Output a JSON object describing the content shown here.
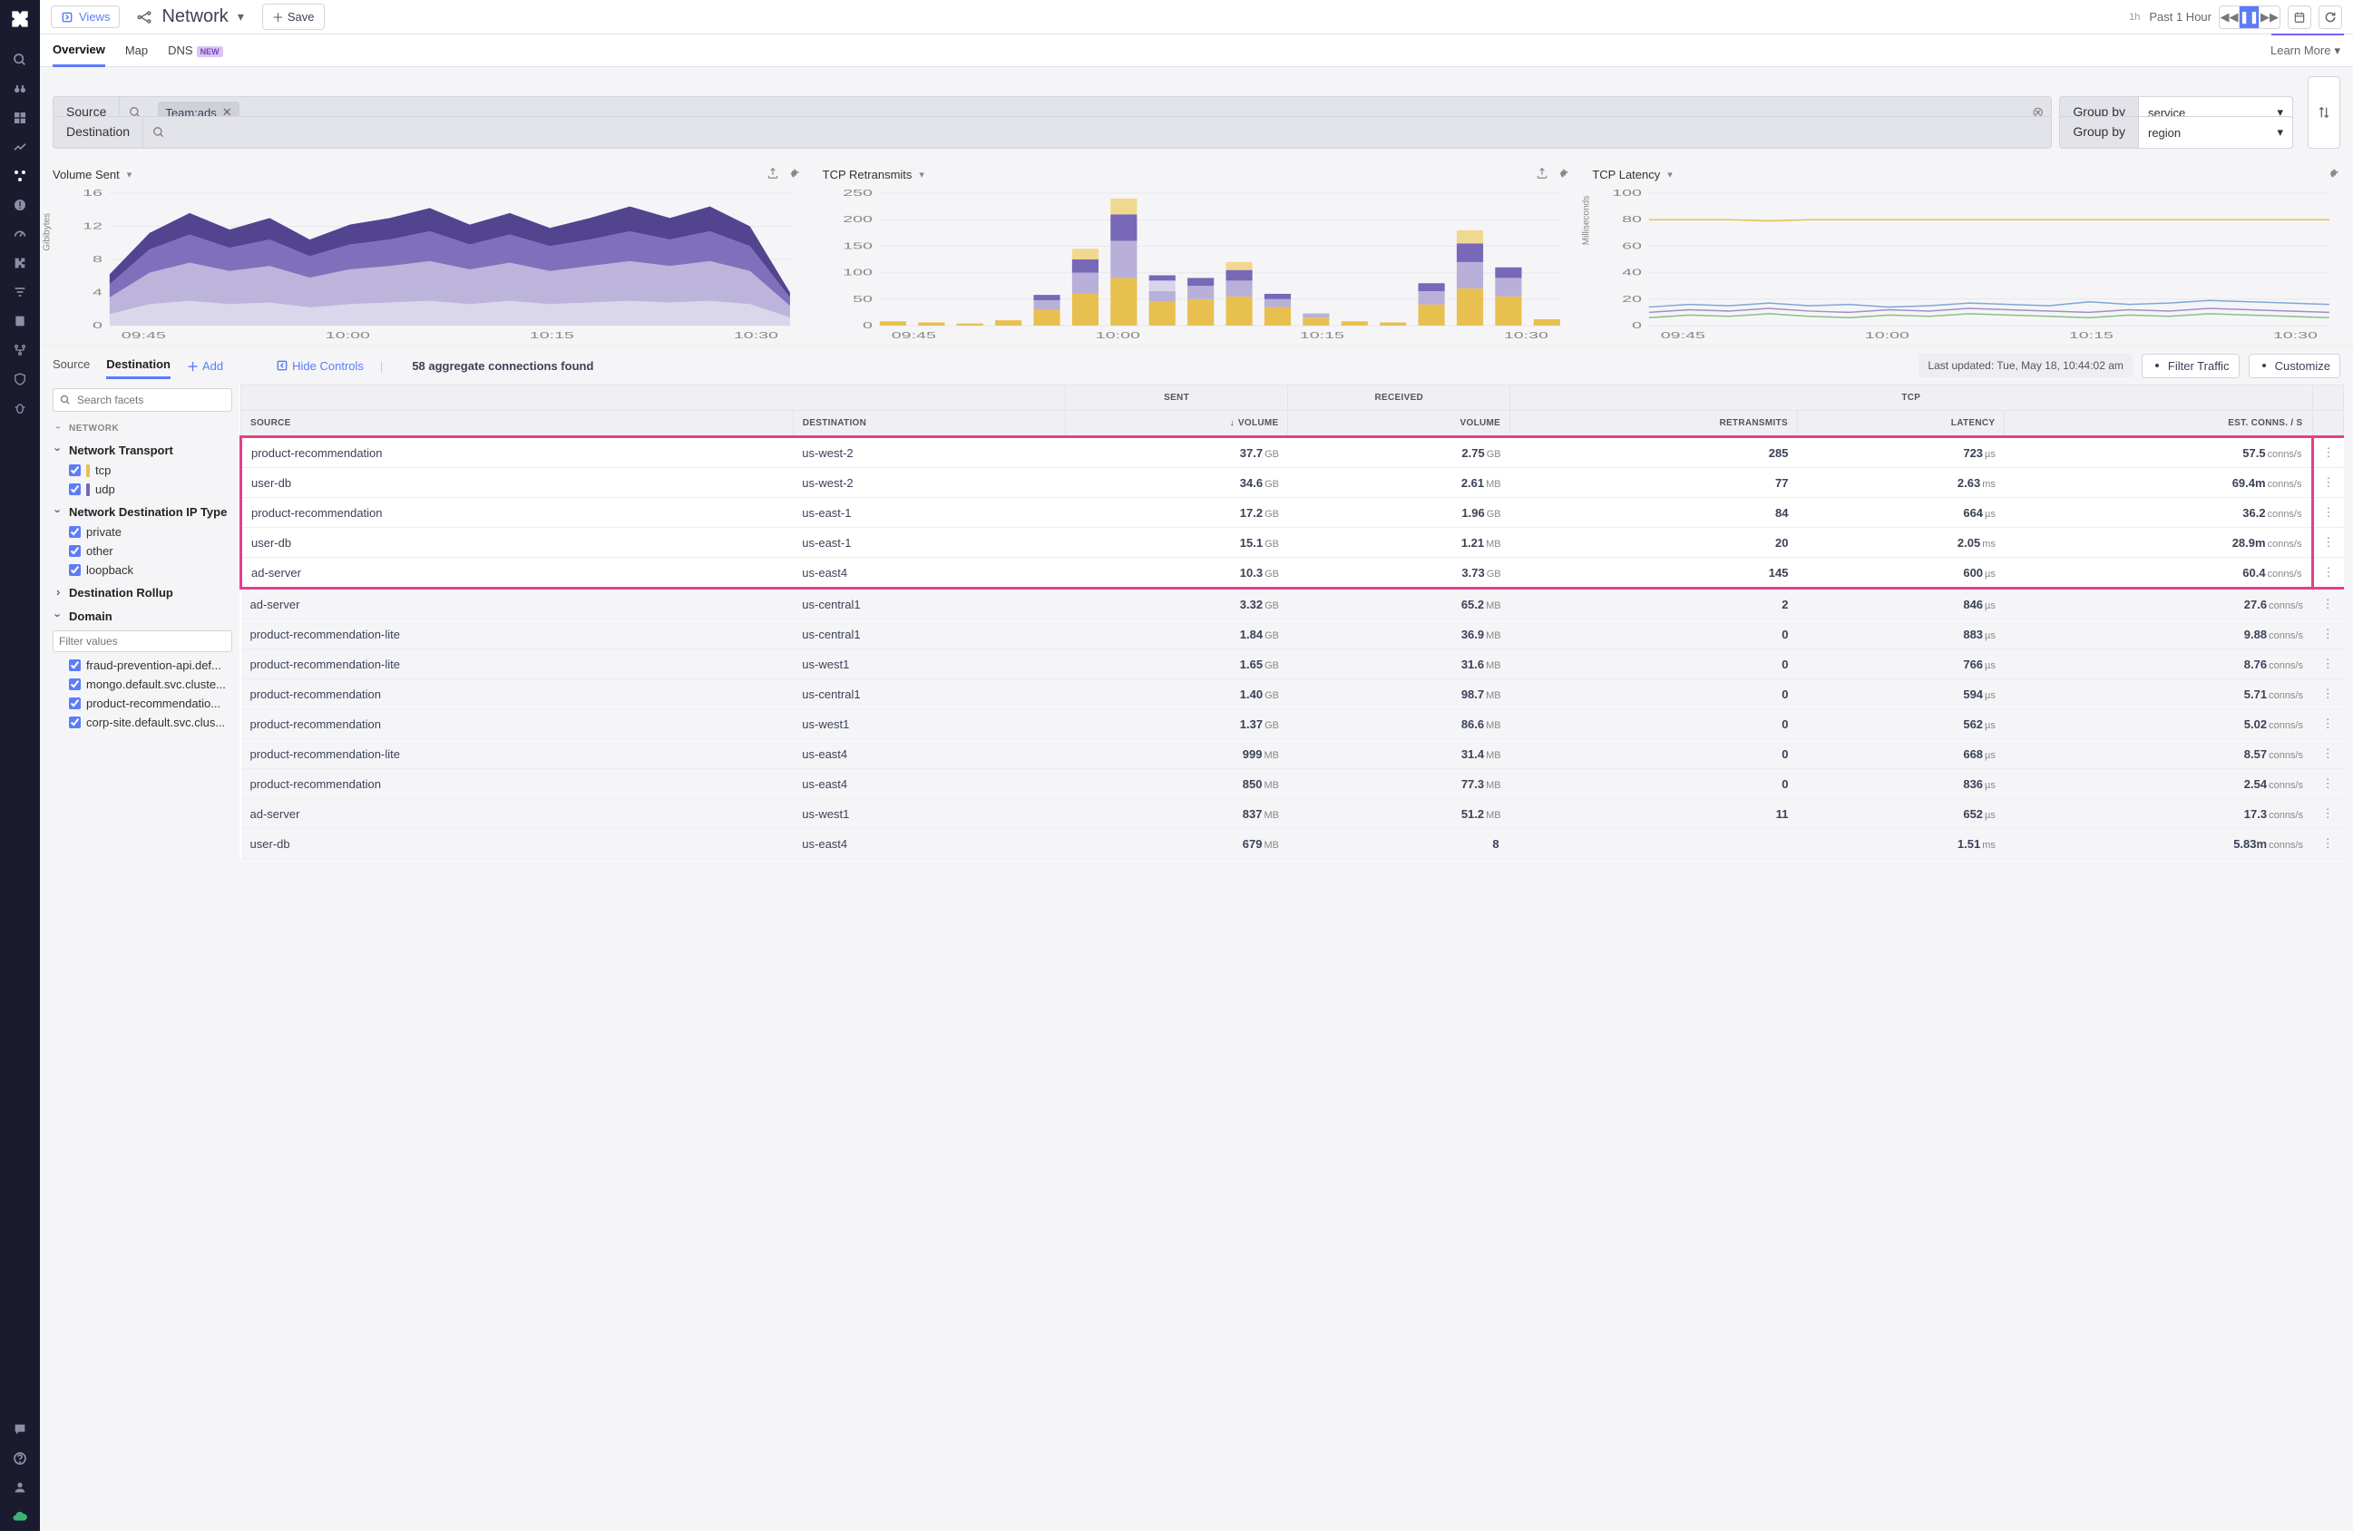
{
  "colors": {
    "accent": "#5c7cfa",
    "purple_dark": "#4a3a8a",
    "purple_mid": "#7868b8",
    "purple_light": "#b8b0d8",
    "purple_pale": "#d8d4ea",
    "yellow": "#e8c050",
    "yellow_light": "#f0d890",
    "grid": "#e8e8ee",
    "highlight_border": "#e83e8c",
    "tcp_swatch": "#e8c050",
    "udp_swatch": "#7868b8"
  },
  "header": {
    "views_label": "Views",
    "title": "Network",
    "save_label": "Save",
    "time_short": "1h",
    "time_label": "Past 1 Hour"
  },
  "tabs": {
    "items": [
      "Overview",
      "Map",
      "DNS"
    ],
    "active": 0,
    "new_badge": "NEW",
    "learn_more": "Learn More"
  },
  "filters": {
    "source_label": "Source",
    "destination_label": "Destination",
    "tag_text": "Team:ads",
    "groupby_label": "Group by",
    "groupby_source": "service",
    "groupby_dest": "region"
  },
  "charts": {
    "volume": {
      "title": "Volume Sent",
      "type": "area-stacked",
      "ylabel": "Gibibytes",
      "ylim": [
        0,
        16
      ],
      "ytick_step": 4,
      "x_ticks": [
        "09:45",
        "10:00",
        "10:15",
        "10:30"
      ],
      "x": [
        0,
        1,
        2,
        3,
        4,
        5,
        6,
        7,
        8,
        9,
        10,
        11,
        12,
        13,
        14,
        15,
        16,
        17
      ],
      "series": [
        {
          "color": "#4a3a8a",
          "values": [
            1.2,
            2.0,
            2.6,
            2.2,
            2.6,
            2.0,
            2.4,
            2.6,
            2.8,
            2.4,
            2.6,
            2.2,
            2.6,
            3.0,
            2.6,
            3.0,
            2.4,
            0.6
          ]
        },
        {
          "color": "#7868b8",
          "values": [
            1.6,
            2.8,
            3.4,
            2.8,
            3.2,
            2.6,
            3.0,
            3.2,
            3.6,
            3.0,
            3.4,
            3.0,
            3.2,
            3.6,
            3.2,
            3.6,
            3.0,
            1.0
          ]
        },
        {
          "color": "#b8b0d8",
          "values": [
            2.0,
            3.8,
            4.6,
            4.0,
            4.4,
            3.6,
            4.2,
            4.4,
            4.8,
            4.2,
            4.6,
            4.0,
            4.4,
            4.8,
            4.4,
            4.8,
            4.0,
            1.4
          ]
        },
        {
          "color": "#d8d4ea",
          "values": [
            1.4,
            2.6,
            3.0,
            2.6,
            2.8,
            2.2,
            2.6,
            2.8,
            3.0,
            2.6,
            3.0,
            2.6,
            2.8,
            3.0,
            2.8,
            3.0,
            2.6,
            1.0
          ]
        }
      ]
    },
    "retransmits": {
      "title": "TCP Retransmits",
      "type": "bar-stacked",
      "ylim": [
        0,
        250
      ],
      "ytick_step": 50,
      "x_ticks": [
        "09:45",
        "10:00",
        "10:15",
        "10:30"
      ],
      "bars": [
        {
          "x": 0,
          "segs": [
            {
              "c": "#e8c050",
              "v": 8
            }
          ]
        },
        {
          "x": 1,
          "segs": [
            {
              "c": "#e8c050",
              "v": 6
            }
          ]
        },
        {
          "x": 2,
          "segs": [
            {
              "c": "#e8c050",
              "v": 4
            }
          ]
        },
        {
          "x": 3,
          "segs": [
            {
              "c": "#e8c050",
              "v": 10
            }
          ]
        },
        {
          "x": 4,
          "segs": [
            {
              "c": "#e8c050",
              "v": 30
            },
            {
              "c": "#b8b0d8",
              "v": 18
            },
            {
              "c": "#7868b8",
              "v": 10
            }
          ]
        },
        {
          "x": 5,
          "segs": [
            {
              "c": "#e8c050",
              "v": 60
            },
            {
              "c": "#b8b0d8",
              "v": 40
            },
            {
              "c": "#7868b8",
              "v": 25
            },
            {
              "c": "#f0d890",
              "v": 20
            }
          ]
        },
        {
          "x": 6,
          "segs": [
            {
              "c": "#e8c050",
              "v": 90
            },
            {
              "c": "#b8b0d8",
              "v": 70
            },
            {
              "c": "#7868b8",
              "v": 50
            },
            {
              "c": "#f0d890",
              "v": 30
            }
          ]
        },
        {
          "x": 7,
          "segs": [
            {
              "c": "#e8c050",
              "v": 45
            },
            {
              "c": "#b8b0d8",
              "v": 20
            },
            {
              "c": "#d8d4ea",
              "v": 20
            },
            {
              "c": "#7868b8",
              "v": 10
            }
          ]
        },
        {
          "x": 8,
          "segs": [
            {
              "c": "#e8c050",
              "v": 50
            },
            {
              "c": "#b8b0d8",
              "v": 25
            },
            {
              "c": "#7868b8",
              "v": 15
            }
          ]
        },
        {
          "x": 9,
          "segs": [
            {
              "c": "#e8c050",
              "v": 55
            },
            {
              "c": "#b8b0d8",
              "v": 30
            },
            {
              "c": "#7868b8",
              "v": 20
            },
            {
              "c": "#f0d890",
              "v": 15
            }
          ]
        },
        {
          "x": 10,
          "segs": [
            {
              "c": "#e8c050",
              "v": 35
            },
            {
              "c": "#b8b0d8",
              "v": 15
            },
            {
              "c": "#7868b8",
              "v": 10
            }
          ]
        },
        {
          "x": 11,
          "segs": [
            {
              "c": "#e8c050",
              "v": 15
            },
            {
              "c": "#b8b0d8",
              "v": 8
            }
          ]
        },
        {
          "x": 12,
          "segs": [
            {
              "c": "#e8c050",
              "v": 8
            }
          ]
        },
        {
          "x": 13,
          "segs": [
            {
              "c": "#e8c050",
              "v": 6
            }
          ]
        },
        {
          "x": 14,
          "segs": [
            {
              "c": "#e8c050",
              "v": 40
            },
            {
              "c": "#b8b0d8",
              "v": 25
            },
            {
              "c": "#7868b8",
              "v": 15
            }
          ]
        },
        {
          "x": 15,
          "segs": [
            {
              "c": "#e8c050",
              "v": 70
            },
            {
              "c": "#b8b0d8",
              "v": 50
            },
            {
              "c": "#7868b8",
              "v": 35
            },
            {
              "c": "#f0d890",
              "v": 25
            }
          ]
        },
        {
          "x": 16,
          "segs": [
            {
              "c": "#e8c050",
              "v": 55
            },
            {
              "c": "#b8b0d8",
              "v": 35
            },
            {
              "c": "#7868b8",
              "v": 20
            }
          ]
        },
        {
          "x": 17,
          "segs": [
            {
              "c": "#e8c050",
              "v": 12
            }
          ]
        }
      ]
    },
    "latency": {
      "title": "TCP Latency",
      "type": "line",
      "ylabel": "Milliseconds",
      "ylim": [
        0,
        100
      ],
      "ytick_step": 20,
      "x_ticks": [
        "09:45",
        "10:00",
        "10:15",
        "10:30"
      ],
      "series": [
        {
          "color": "#e8c050",
          "values": [
            80,
            80,
            80,
            79,
            80,
            80,
            80,
            80,
            80,
            80,
            80,
            80,
            80,
            80,
            80,
            80,
            80,
            80
          ]
        },
        {
          "color": "#7fa8d8",
          "values": [
            14,
            16,
            15,
            17,
            15,
            16,
            14,
            15,
            17,
            16,
            15,
            18,
            16,
            17,
            19,
            18,
            17,
            16
          ]
        },
        {
          "color": "#a090c8",
          "values": [
            10,
            12,
            11,
            13,
            11,
            10,
            12,
            11,
            13,
            12,
            11,
            10,
            12,
            11,
            13,
            12,
            11,
            10
          ]
        },
        {
          "color": "#88c088",
          "values": [
            6,
            8,
            7,
            9,
            7,
            6,
            8,
            7,
            9,
            8,
            7,
            6,
            8,
            7,
            9,
            8,
            7,
            6
          ]
        }
      ]
    }
  },
  "mid": {
    "source_tab": "Source",
    "dest_tab": "Destination",
    "add_label": "Add",
    "hide_controls": "Hide Controls",
    "agg_text": "58 aggregate connections found",
    "last_updated": "Last updated: Tue, May 18, 10:44:02 am",
    "filter_traffic": "Filter Traffic",
    "customize": "Customize"
  },
  "facets": {
    "search_placeholder": "Search facets",
    "group_network": "NETWORK",
    "transport_title": "Network Transport",
    "transport_items": [
      {
        "label": "tcp",
        "swatch": "#e8c050"
      },
      {
        "label": "udp",
        "swatch": "#7868b8"
      }
    ],
    "iptype_title": "Network Destination IP Type",
    "iptype_items": [
      "private",
      "other",
      "loopback"
    ],
    "rollup_title": "Destination Rollup",
    "domain_title": "Domain",
    "filter_values_placeholder": "Filter values",
    "domain_items": [
      "fraud-prevention-api.def...",
      "mongo.default.svc.cluste...",
      "product-recommendatio...",
      "corp-site.default.svc.clus..."
    ]
  },
  "table": {
    "group_headers": {
      "sent": "SENT",
      "received": "RECEIVED",
      "tcp": "TCP"
    },
    "columns": {
      "source": "SOURCE",
      "destination": "DESTINATION",
      "volume_sent": "VOLUME",
      "volume_recv": "VOLUME",
      "retransmits": "RETRANSMITS",
      "latency": "LATENCY",
      "est_conns": "EST. CONNS. / S"
    },
    "sort_on": "volume_sent",
    "sort_dir": "desc",
    "highlight_rows": 5,
    "rows": [
      {
        "source": "product-recommendation",
        "dest": "us-west-2",
        "sent_v": "37.7",
        "sent_u": "GB",
        "recv_v": "2.75",
        "recv_u": "GB",
        "retr": "285",
        "lat_v": "723",
        "lat_u": "µs",
        "conn_v": "57.5",
        "conn_u": "conns/s"
      },
      {
        "source": "user-db",
        "dest": "us-west-2",
        "sent_v": "34.6",
        "sent_u": "GB",
        "recv_v": "2.61",
        "recv_u": "MB",
        "retr": "77",
        "lat_v": "2.63",
        "lat_u": "ms",
        "conn_v": "69.4m",
        "conn_u": "conns/s"
      },
      {
        "source": "product-recommendation",
        "dest": "us-east-1",
        "sent_v": "17.2",
        "sent_u": "GB",
        "recv_v": "1.96",
        "recv_u": "GB",
        "retr": "84",
        "lat_v": "664",
        "lat_u": "µs",
        "conn_v": "36.2",
        "conn_u": "conns/s"
      },
      {
        "source": "user-db",
        "dest": "us-east-1",
        "sent_v": "15.1",
        "sent_u": "GB",
        "recv_v": "1.21",
        "recv_u": "MB",
        "retr": "20",
        "lat_v": "2.05",
        "lat_u": "ms",
        "conn_v": "28.9m",
        "conn_u": "conns/s"
      },
      {
        "source": "ad-server",
        "dest": "us-east4",
        "sent_v": "10.3",
        "sent_u": "GB",
        "recv_v": "3.73",
        "recv_u": "GB",
        "retr": "145",
        "lat_v": "600",
        "lat_u": "µs",
        "conn_v": "60.4",
        "conn_u": "conns/s"
      },
      {
        "source": "ad-server",
        "dest": "us-central1",
        "sent_v": "3.32",
        "sent_u": "GB",
        "recv_v": "65.2",
        "recv_u": "MB",
        "retr": "2",
        "lat_v": "846",
        "lat_u": "µs",
        "conn_v": "27.6",
        "conn_u": "conns/s"
      },
      {
        "source": "product-recommendation-lite",
        "dest": "us-central1",
        "sent_v": "1.84",
        "sent_u": "GB",
        "recv_v": "36.9",
        "recv_u": "MB",
        "retr": "0",
        "lat_v": "883",
        "lat_u": "µs",
        "conn_v": "9.88",
        "conn_u": "conns/s"
      },
      {
        "source": "product-recommendation-lite",
        "dest": "us-west1",
        "sent_v": "1.65",
        "sent_u": "GB",
        "recv_v": "31.6",
        "recv_u": "MB",
        "retr": "0",
        "lat_v": "766",
        "lat_u": "µs",
        "conn_v": "8.76",
        "conn_u": "conns/s"
      },
      {
        "source": "product-recommendation",
        "dest": "us-central1",
        "sent_v": "1.40",
        "sent_u": "GB",
        "recv_v": "98.7",
        "recv_u": "MB",
        "retr": "0",
        "lat_v": "594",
        "lat_u": "µs",
        "conn_v": "5.71",
        "conn_u": "conns/s"
      },
      {
        "source": "product-recommendation",
        "dest": "us-west1",
        "sent_v": "1.37",
        "sent_u": "GB",
        "recv_v": "86.6",
        "recv_u": "MB",
        "retr": "0",
        "lat_v": "562",
        "lat_u": "µs",
        "conn_v": "5.02",
        "conn_u": "conns/s"
      },
      {
        "source": "product-recommendation-lite",
        "dest": "us-east4",
        "sent_v": "999",
        "sent_u": "MB",
        "recv_v": "31.4",
        "recv_u": "MB",
        "retr": "0",
        "lat_v": "668",
        "lat_u": "µs",
        "conn_v": "8.57",
        "conn_u": "conns/s"
      },
      {
        "source": "product-recommendation",
        "dest": "us-east4",
        "sent_v": "850",
        "sent_u": "MB",
        "recv_v": "77.3",
        "recv_u": "MB",
        "retr": "0",
        "lat_v": "836",
        "lat_u": "µs",
        "conn_v": "2.54",
        "conn_u": "conns/s"
      },
      {
        "source": "ad-server",
        "dest": "us-west1",
        "sent_v": "837",
        "sent_u": "MB",
        "recv_v": "51.2",
        "recv_u": "MB",
        "retr": "11",
        "lat_v": "652",
        "lat_u": "µs",
        "conn_v": "17.3",
        "conn_u": "conns/s"
      },
      {
        "source": "user-db",
        "dest": "us-east4",
        "sent_v": "679",
        "sent_u": "MB",
        "recv_v": "8",
        "recv_u": "",
        "retr": "",
        "lat_v": "1.51",
        "lat_u": "ms",
        "conn_v": "5.83m",
        "conn_u": "conns/s"
      }
    ]
  }
}
